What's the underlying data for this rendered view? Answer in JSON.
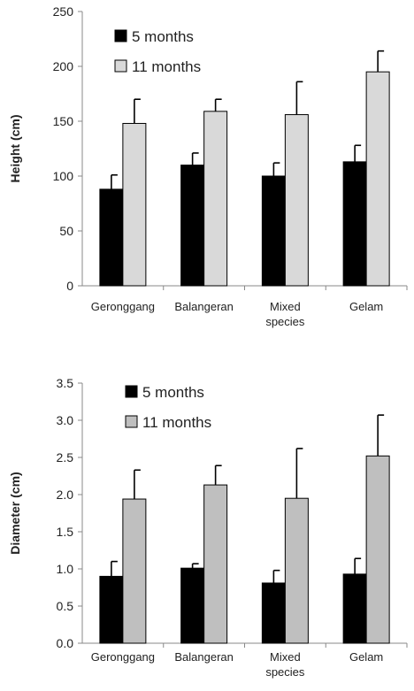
{
  "chart_data": [
    {
      "type": "bar",
      "ylabel": "Height (cm)",
      "ylim": [
        0,
        250
      ],
      "yticks": [
        "0",
        "50",
        "100",
        "150",
        "200",
        "250"
      ],
      "categories": [
        [
          "Geronggang"
        ],
        [
          "Balangeran"
        ],
        [
          "Mixed",
          "species"
        ],
        [
          "Gelam"
        ]
      ],
      "series": [
        {
          "name": "5 months",
          "color": "#000000",
          "values": [
            88,
            110,
            100,
            113
          ],
          "errors": [
            13,
            11,
            12,
            15
          ]
        },
        {
          "name": "11 months",
          "color": "#d9d9d9",
          "values": [
            148,
            159,
            156,
            195
          ],
          "errors": [
            22,
            11,
            30,
            19
          ]
        }
      ],
      "legend_position": "top-left",
      "grid": false
    },
    {
      "type": "bar",
      "ylabel": "Diameter  (cm)",
      "ylim": [
        0,
        3.5
      ],
      "yticks": [
        "0.0",
        "0.5",
        "1.0",
        "1.5",
        "2.0",
        "2.5",
        "3.0",
        "3.5"
      ],
      "categories": [
        [
          "Geronggang"
        ],
        [
          "Balangeran"
        ],
        [
          "Mixed",
          "species"
        ],
        [
          "Gelam"
        ]
      ],
      "series": [
        {
          "name": "5 months",
          "color": "#000000",
          "values": [
            0.9,
            1.01,
            0.81,
            0.93
          ],
          "errors": [
            0.2,
            0.06,
            0.17,
            0.21
          ]
        },
        {
          "name": "11 months",
          "color": "#bfbfbf",
          "values": [
            1.94,
            2.13,
            1.95,
            2.52
          ],
          "errors": [
            0.39,
            0.26,
            0.67,
            0.55
          ]
        }
      ],
      "legend_position": "top-left",
      "grid": false
    }
  ]
}
